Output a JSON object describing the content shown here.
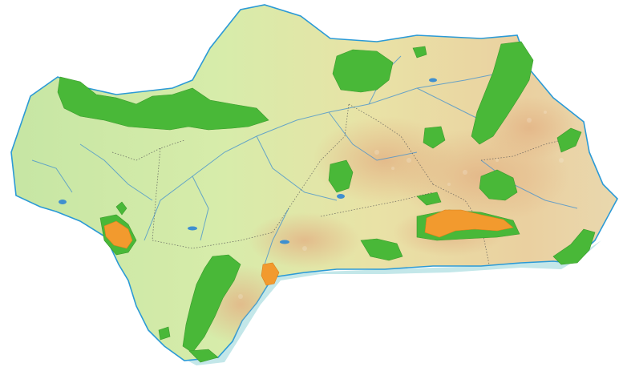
{
  "map": {
    "region": "",
    "colors": {
      "background": "#ffffff",
      "land_light": "#cfe8a8",
      "land_mid": "#e8e0a0",
      "land_high": "#e6c48a",
      "sea_shallow": "#a9dde0",
      "coast_line": "#2b9ad6",
      "river": "#3f8fd0",
      "border_dotted": "#555555",
      "protected_area_green": "#49b838",
      "protected_area_orange": "#f29a2e"
    },
    "legend": [],
    "labels": []
  }
}
